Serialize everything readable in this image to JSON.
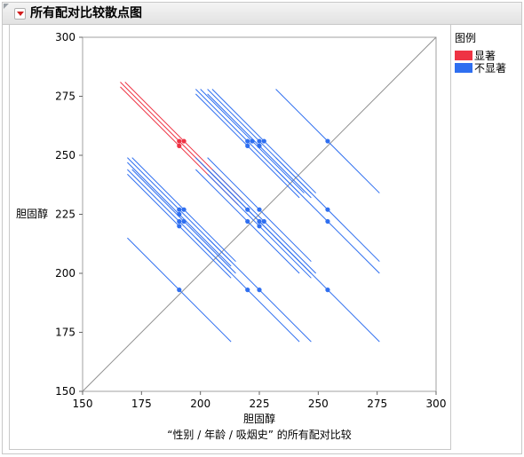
{
  "window": {
    "title": "所有配对比较散点图"
  },
  "legend": {
    "title": "图例",
    "items": [
      {
        "label": "显著",
        "color": "#ee3344"
      },
      {
        "label": "不显著",
        "color": "#2f6ff0"
      }
    ]
  },
  "chart_data": {
    "type": "scatter",
    "title": "",
    "xlabel": "胆固醇",
    "ylabel": "胆固醇",
    "footnote": "“性别 / 年龄 / 吸烟史” 的所有配对比较",
    "xlim": [
      150,
      300
    ],
    "ylim": [
      150,
      300
    ],
    "xticks": [
      "150",
      "175",
      "200",
      "225",
      "250",
      "275",
      "300"
    ],
    "yticks": [
      "150",
      "175",
      "200",
      "225",
      "250",
      "275",
      "300"
    ],
    "diagonal": true,
    "grid": false,
    "legend_position": "right",
    "segment_half_length": 22,
    "segment_half_length_significant": 25,
    "levels": [
      191,
      220,
      225,
      254
    ],
    "points": [
      {
        "x": 191,
        "y": 256,
        "significant": true
      },
      {
        "x": 193,
        "y": 256,
        "significant": true
      },
      {
        "x": 191,
        "y": 254,
        "significant": true
      },
      {
        "x": 220,
        "y": 256,
        "significant": false
      },
      {
        "x": 222,
        "y": 256,
        "significant": false
      },
      {
        "x": 220,
        "y": 254,
        "significant": false
      },
      {
        "x": 225,
        "y": 256,
        "significant": false
      },
      {
        "x": 227,
        "y": 256,
        "significant": false
      },
      {
        "x": 225,
        "y": 254,
        "significant": false
      },
      {
        "x": 254,
        "y": 256,
        "significant": false
      },
      {
        "x": 191,
        "y": 227,
        "significant": false
      },
      {
        "x": 193,
        "y": 227,
        "significant": false
      },
      {
        "x": 191,
        "y": 225,
        "significant": false
      },
      {
        "x": 220,
        "y": 227,
        "significant": false
      },
      {
        "x": 225,
        "y": 227,
        "significant": false
      },
      {
        "x": 254,
        "y": 227,
        "significant": false
      },
      {
        "x": 191,
        "y": 222,
        "significant": false
      },
      {
        "x": 193,
        "y": 222,
        "significant": false
      },
      {
        "x": 191,
        "y": 220,
        "significant": false
      },
      {
        "x": 220,
        "y": 222,
        "significant": false
      },
      {
        "x": 225,
        "y": 222,
        "significant": false
      },
      {
        "x": 227,
        "y": 222,
        "significant": false
      },
      {
        "x": 225,
        "y": 220,
        "significant": false
      },
      {
        "x": 254,
        "y": 222,
        "significant": false
      },
      {
        "x": 191,
        "y": 193,
        "significant": false
      },
      {
        "x": 220,
        "y": 193,
        "significant": false
      },
      {
        "x": 225,
        "y": 193,
        "significant": false
      },
      {
        "x": 254,
        "y": 193,
        "significant": false
      }
    ]
  }
}
